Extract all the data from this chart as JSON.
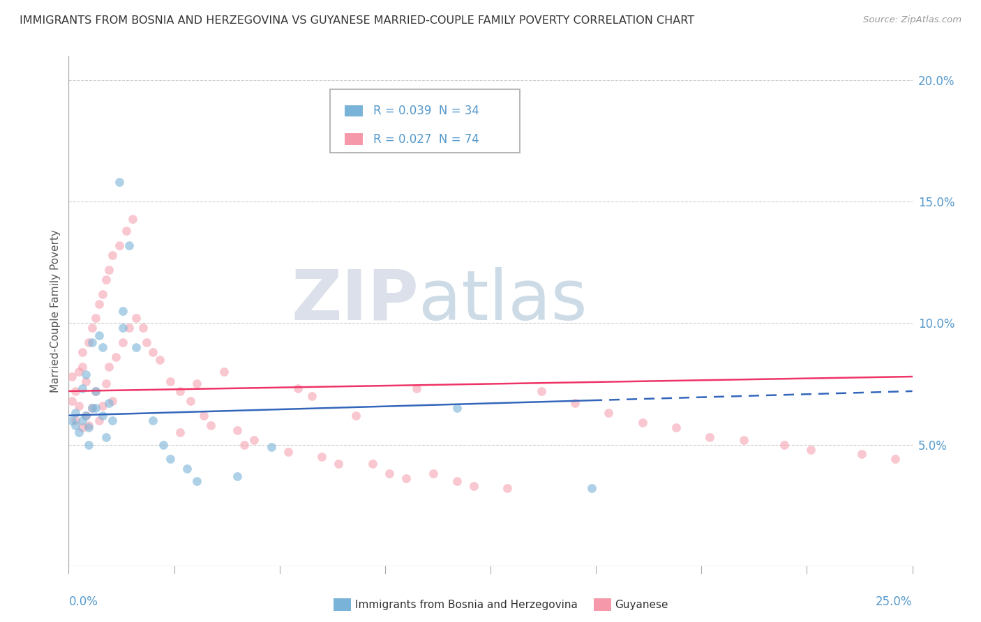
{
  "title": "IMMIGRANTS FROM BOSNIA AND HERZEGOVINA VS GUYANESE MARRIED-COUPLE FAMILY POVERTY CORRELATION CHART",
  "source": "Source: ZipAtlas.com",
  "ylabel": "Married-Couple Family Poverty",
  "xlim": [
    0.0,
    0.25
  ],
  "ylim": [
    0.0,
    0.21
  ],
  "yticks": [
    0.05,
    0.1,
    0.15,
    0.2
  ],
  "ytick_labels": [
    "5.0%",
    "10.0%",
    "15.0%",
    "20.0%"
  ],
  "bg_color": "#ffffff",
  "grid_color": "#cccccc",
  "axis_color": "#aaaaaa",
  "title_color": "#333333",
  "tick_color": "#5599cc",
  "bosnia_color": "#7ab3d8",
  "guyanese_color": "#f599aa",
  "bosnia_line_color": "#3366bb",
  "guyanese_line_color": "#ee3366",
  "bosnia_x": [
    0.001,
    0.002,
    0.002,
    0.003,
    0.004,
    0.004,
    0.005,
    0.005,
    0.006,
    0.006,
    0.007,
    0.007,
    0.008,
    0.008,
    0.009,
    0.01,
    0.01,
    0.011,
    0.012,
    0.013,
    0.015,
    0.016,
    0.016,
    0.018,
    0.02,
    0.025,
    0.028,
    0.03,
    0.035,
    0.038,
    0.05,
    0.06,
    0.115,
    0.155
  ],
  "bosnia_y": [
    0.06,
    0.063,
    0.058,
    0.055,
    0.073,
    0.06,
    0.062,
    0.079,
    0.057,
    0.05,
    0.092,
    0.065,
    0.065,
    0.072,
    0.095,
    0.062,
    0.09,
    0.053,
    0.067,
    0.06,
    0.158,
    0.105,
    0.098,
    0.132,
    0.09,
    0.06,
    0.05,
    0.044,
    0.04,
    0.035,
    0.037,
    0.049,
    0.065,
    0.032
  ],
  "guyanese_x": [
    0.001,
    0.001,
    0.002,
    0.002,
    0.003,
    0.003,
    0.004,
    0.004,
    0.004,
    0.005,
    0.005,
    0.006,
    0.006,
    0.007,
    0.007,
    0.008,
    0.008,
    0.009,
    0.009,
    0.01,
    0.01,
    0.011,
    0.011,
    0.012,
    0.012,
    0.013,
    0.013,
    0.014,
    0.015,
    0.016,
    0.017,
    0.018,
    0.019,
    0.02,
    0.022,
    0.023,
    0.025,
    0.027,
    0.03,
    0.033,
    0.033,
    0.036,
    0.038,
    0.04,
    0.042,
    0.046,
    0.05,
    0.052,
    0.055,
    0.065,
    0.068,
    0.072,
    0.075,
    0.08,
    0.085,
    0.09,
    0.095,
    0.1,
    0.103,
    0.108,
    0.115,
    0.12,
    0.13,
    0.14,
    0.15,
    0.16,
    0.17,
    0.18,
    0.19,
    0.2,
    0.212,
    0.22,
    0.235,
    0.245
  ],
  "guyanese_y": [
    0.068,
    0.078,
    0.072,
    0.06,
    0.08,
    0.066,
    0.082,
    0.057,
    0.088,
    0.076,
    0.062,
    0.092,
    0.058,
    0.098,
    0.065,
    0.102,
    0.072,
    0.108,
    0.06,
    0.112,
    0.066,
    0.118,
    0.075,
    0.122,
    0.082,
    0.128,
    0.068,
    0.086,
    0.132,
    0.092,
    0.138,
    0.098,
    0.143,
    0.102,
    0.098,
    0.092,
    0.088,
    0.085,
    0.076,
    0.072,
    0.055,
    0.068,
    0.075,
    0.062,
    0.058,
    0.08,
    0.056,
    0.05,
    0.052,
    0.047,
    0.073,
    0.07,
    0.045,
    0.042,
    0.062,
    0.042,
    0.038,
    0.036,
    0.073,
    0.038,
    0.035,
    0.033,
    0.032,
    0.072,
    0.067,
    0.063,
    0.059,
    0.057,
    0.053,
    0.052,
    0.05,
    0.048,
    0.046,
    0.044
  ]
}
